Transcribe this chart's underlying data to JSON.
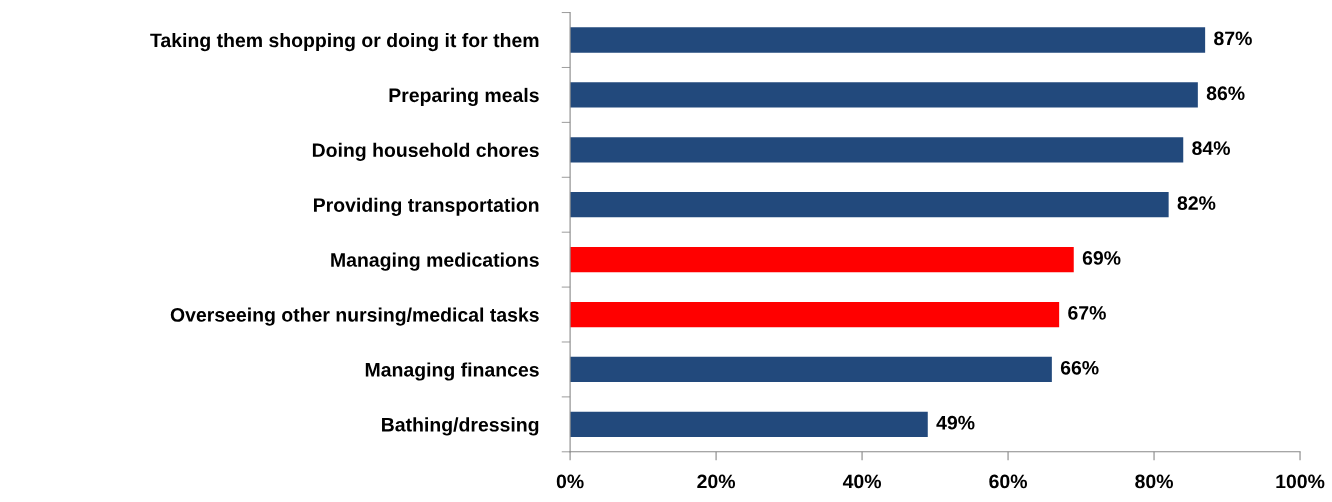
{
  "chart_data": {
    "type": "bar",
    "orientation": "horizontal",
    "categories": [
      "Taking them shopping or doing it for them",
      "Preparing meals",
      "Doing household chores",
      "Providing transportation",
      "Managing medications",
      "Overseeing other nursing/medical tasks",
      "Managing finances",
      "Bathing/dressing"
    ],
    "values": [
      87,
      86,
      84,
      82,
      69,
      67,
      66,
      49
    ],
    "colors": [
      "#22497c",
      "#22497c",
      "#22497c",
      "#22497c",
      "#ff0000",
      "#ff0000",
      "#22497c",
      "#22497c"
    ],
    "value_labels": [
      "87%",
      "86%",
      "84%",
      "82%",
      "69%",
      "67%",
      "66%",
      "49%"
    ],
    "xlim": [
      0,
      100
    ],
    "xticks": [
      {
        "value": 0,
        "label": "0%"
      },
      {
        "value": 20,
        "label": "20%"
      },
      {
        "value": 40,
        "label": "40%"
      },
      {
        "value": 60,
        "label": "60%"
      },
      {
        "value": 80,
        "label": "80%"
      },
      {
        "value": 100,
        "label": "100%"
      }
    ],
    "grid": false,
    "legend": false
  }
}
